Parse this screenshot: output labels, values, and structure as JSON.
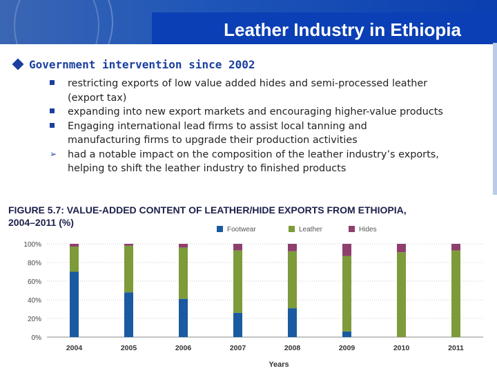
{
  "slide": {
    "title": "Leather Industry in Ethiopia",
    "main_point": "Government intervention since 2002",
    "sub_points": [
      {
        "marker": "square",
        "text": "restricting exports of low value added hides and semi-processed leather (export tax)"
      },
      {
        "marker": "square",
        "text": "expanding into new export markets and encouraging higher-value products"
      },
      {
        "marker": "square",
        "text": "Engaging international lead firms to assist local tanning and manufacturing firms to upgrade their production activities"
      },
      {
        "marker": "arrow",
        "text": "had a notable impact on the composition of the leather industry’s exports, helping to shift the leather industry to finished products"
      }
    ]
  },
  "figure": {
    "title_line1": "FIGURE 5.7: VALUE-ADDED CONTENT OF LEATHER/HIDE EXPORTS FROM ETHIOPIA,",
    "title_line2": "2004–2011 (%)"
  },
  "chart_data": {
    "type": "bar",
    "stacked": true,
    "categories": [
      "2004",
      "2005",
      "2006",
      "2007",
      "2008",
      "2009",
      "2010",
      "2011"
    ],
    "series": [
      {
        "name": "Footwear",
        "color": "#1a5aa0",
        "values": [
          70,
          48,
          41,
          26,
          31,
          6,
          0,
          0
        ]
      },
      {
        "name": "Leather",
        "color": "#7d9b3a",
        "values": [
          27,
          50,
          55,
          67,
          61,
          81,
          91,
          93
        ]
      },
      {
        "name": "Hides",
        "color": "#8e3f6e",
        "values": [
          3,
          2,
          4,
          7,
          8,
          13,
          9,
          7
        ]
      }
    ],
    "yticks": [
      "0%",
      "20%",
      "40%",
      "60%",
      "80%",
      "100%"
    ],
    "ylim": [
      0,
      100
    ],
    "xlabel": "Years",
    "ylabel": "",
    "legend_position": "top"
  }
}
